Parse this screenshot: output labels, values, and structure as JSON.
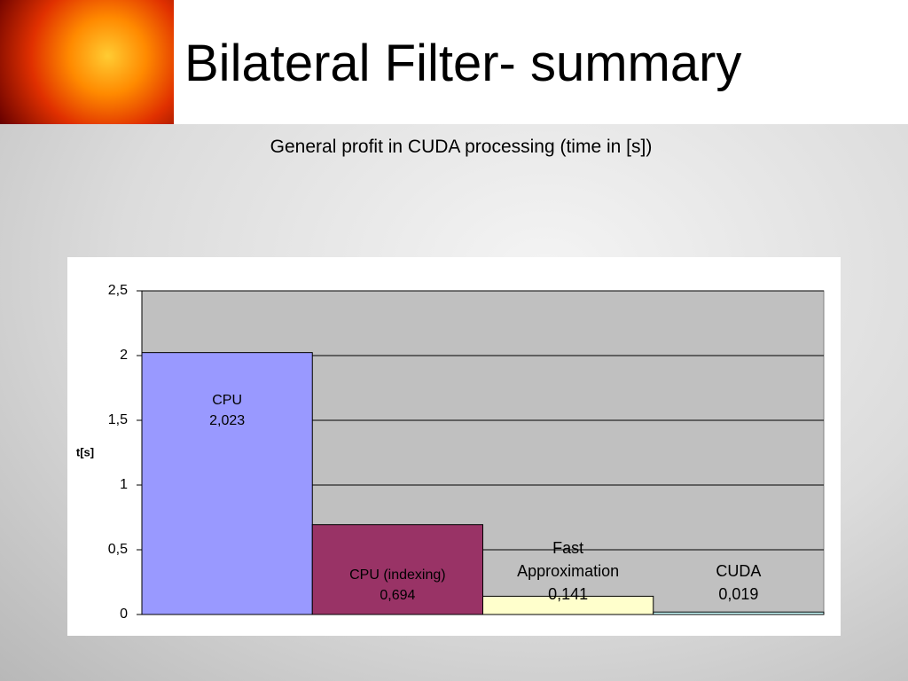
{
  "chart_data": {
    "type": "bar",
    "title": "Bilateral Filter- summary",
    "subtitle": "General profit in CUDA processing (time in [s])",
    "y_label": "t[s]",
    "categories": [
      "CPU",
      "CPU (indexing)",
      "Fast Approximation",
      "CUDA"
    ],
    "values": [
      2.023,
      0.694,
      0.141,
      0.019
    ],
    "value_labels": [
      "2,023",
      "0,694",
      "0,141",
      "0,019"
    ],
    "colors": [
      "#9999ff",
      "#993366",
      "#ffffcc",
      "#ccffff"
    ],
    "ylim": [
      0,
      2.5
    ],
    "yticks": [
      0,
      {
        "value": 0.5,
        "label": "0,5"
      },
      1,
      {
        "value": 1.5,
        "label": "1,5"
      },
      2,
      {
        "value": 2.5,
        "label": "2,5"
      }
    ],
    "grid": true
  }
}
